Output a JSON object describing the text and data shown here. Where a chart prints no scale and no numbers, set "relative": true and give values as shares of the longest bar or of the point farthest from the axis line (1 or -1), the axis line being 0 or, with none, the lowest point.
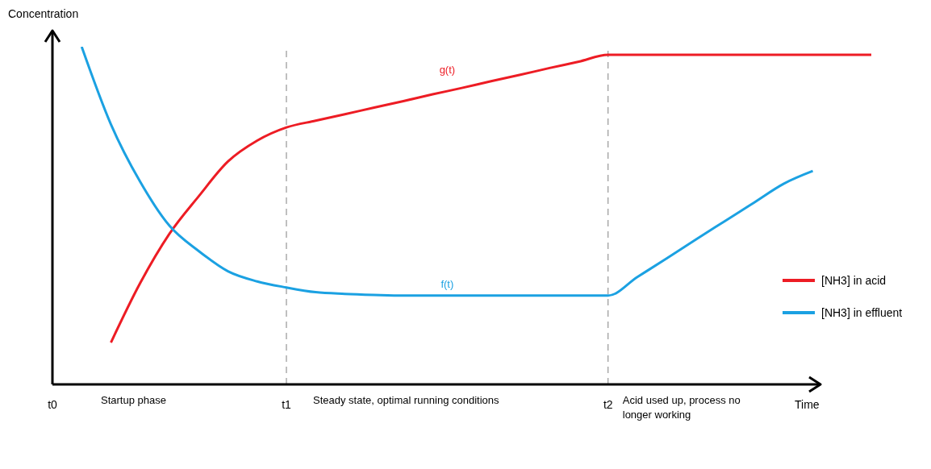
{
  "chart_data": {
    "type": "line",
    "relative": true,
    "xlabel": "Time",
    "ylabel": "Concentration",
    "categories": [
      "t0",
      null,
      null,
      null,
      null,
      null,
      null,
      null,
      "t1",
      null,
      null,
      null,
      null,
      null,
      null,
      null,
      null,
      null,
      null,
      "t2",
      null,
      null,
      null,
      null,
      null,
      null,
      null,
      null,
      null
    ],
    "series": [
      {
        "name": "[NH3] in acid",
        "color": "#ed1c24",
        "values": [
          null,
          null,
          0.124,
          0.3,
          0.446,
          0.557,
          0.66,
          0.722,
          0.761,
          0.781,
          0.8,
          0.82,
          0.839,
          0.859,
          0.878,
          0.898,
          0.917,
          0.937,
          0.956,
          0.976,
          0.976,
          0.976,
          0.976,
          0.976,
          0.976,
          0.976,
          0.976,
          0.976,
          0.976
        ]
      },
      {
        "name": "[NH3] in effluent",
        "color": "#1ba1e2",
        "values": [
          null,
          1.0,
          0.77,
          0.6,
          0.47,
          0.395,
          0.335,
          0.305,
          0.287,
          0.273,
          0.268,
          0.265,
          0.263,
          0.263,
          0.263,
          0.263,
          0.263,
          0.263,
          0.263,
          0.263,
          0.318,
          0.373,
          0.429,
          0.484,
          0.539,
          0.594,
          0.632,
          null,
          null
        ]
      }
    ],
    "ref_lines": [
      {
        "axis": "x",
        "value": "t1",
        "color": "#808080",
        "line_style": "dashed"
      },
      {
        "axis": "x",
        "value": "t2",
        "color": "#808080",
        "line_style": "dashed"
      }
    ],
    "annotations": [
      "g(t)",
      "f(t)",
      "Startup phase",
      "Steady state, optimal running conditions",
      "Acid used up, process no longer working"
    ],
    "legend": "right",
    "grid": false,
    "marker": "none",
    "line_style": "solid"
  }
}
